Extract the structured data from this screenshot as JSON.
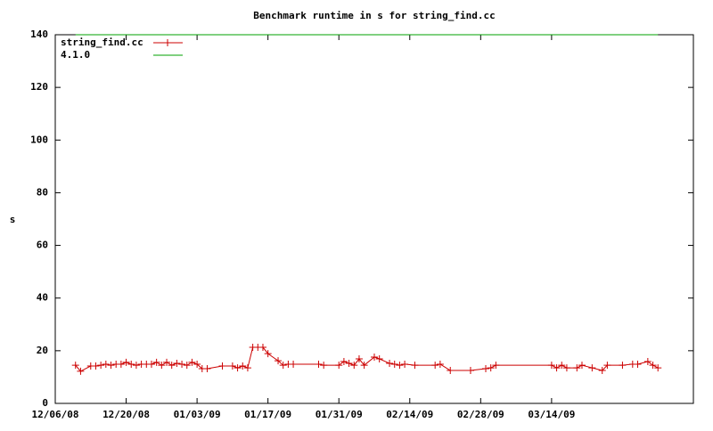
{
  "chart_data": {
    "type": "line",
    "title": "Benchmark runtime in s for string_find.cc",
    "y_label": "s",
    "xlim": [
      "2008-12-06",
      "2009-04-11"
    ],
    "xticks": [
      {
        "value": "2008-12-06",
        "label": "12/06/08"
      },
      {
        "value": "2008-12-20",
        "label": "12/20/08"
      },
      {
        "value": "2009-01-03",
        "label": "01/03/09"
      },
      {
        "value": "2009-01-17",
        "label": "01/17/09"
      },
      {
        "value": "2009-01-31",
        "label": "01/31/09"
      },
      {
        "value": "2009-02-14",
        "label": "02/14/09"
      },
      {
        "value": "2009-02-28",
        "label": "02/28/09"
      },
      {
        "value": "2009-03-14",
        "label": "03/14/09"
      }
    ],
    "ylim": [
      0,
      140
    ],
    "yticks": [
      0,
      20,
      40,
      60,
      80,
      100,
      120,
      140
    ],
    "legend": "top-left",
    "series": [
      {
        "name": "string_find.cc",
        "color": "#cc0000",
        "markers": true,
        "x": [
          "2008-12-10",
          "2008-12-11",
          "2008-12-13",
          "2008-12-14",
          "2008-12-15",
          "2008-12-16",
          "2008-12-17",
          "2008-12-18",
          "2008-12-19",
          "2008-12-20",
          "2008-12-21",
          "2008-12-22",
          "2008-12-23",
          "2008-12-24",
          "2008-12-25",
          "2008-12-26",
          "2008-12-27",
          "2008-12-28",
          "2008-12-29",
          "2008-12-30",
          "2008-12-31",
          "2009-01-01",
          "2009-01-02",
          "2009-01-03",
          "2009-01-04",
          "2009-01-05",
          "2009-01-08",
          "2009-01-10",
          "2009-01-11",
          "2009-01-12",
          "2009-01-13",
          "2009-01-14",
          "2009-01-15",
          "2009-01-16",
          "2009-01-17",
          "2009-01-19",
          "2009-01-20",
          "2009-01-21",
          "2009-01-22",
          "2009-01-27",
          "2009-01-28",
          "2009-01-31",
          "2009-02-01",
          "2009-02-02",
          "2009-02-03",
          "2009-02-04",
          "2009-02-05",
          "2009-02-07",
          "2009-02-08",
          "2009-02-10",
          "2009-02-11",
          "2009-02-12",
          "2009-02-13",
          "2009-02-15",
          "2009-02-19",
          "2009-02-20",
          "2009-02-22",
          "2009-02-26",
          "2009-03-01",
          "2009-03-02",
          "2009-03-03",
          "2009-03-14",
          "2009-03-15",
          "2009-03-16",
          "2009-03-17",
          "2009-03-19",
          "2009-03-20",
          "2009-03-22",
          "2009-03-24",
          "2009-03-25",
          "2009-03-28",
          "2009-03-30",
          "2009-03-31",
          "2009-04-02",
          "2009-04-03",
          "2009-04-04"
        ],
        "values": [
          14.5,
          12.2,
          14.2,
          14.2,
          14.5,
          14.9,
          14.5,
          14.9,
          14.9,
          15.6,
          14.9,
          14.5,
          14.9,
          14.9,
          14.9,
          15.6,
          14.5,
          15.6,
          14.5,
          15.2,
          14.9,
          14.5,
          15.6,
          14.9,
          13.2,
          13.2,
          14.2,
          14.2,
          13.5,
          14.2,
          13.5,
          21.3,
          21.3,
          21.3,
          18.9,
          16.2,
          14.5,
          14.9,
          14.9,
          14.9,
          14.5,
          14.5,
          15.9,
          15.2,
          14.5,
          16.9,
          14.5,
          17.6,
          16.9,
          15.2,
          14.9,
          14.5,
          14.9,
          14.5,
          14.5,
          14.9,
          12.5,
          12.5,
          13.2,
          13.5,
          14.5,
          14.5,
          13.5,
          14.5,
          13.5,
          13.5,
          14.5,
          13.5,
          12.5,
          14.5,
          14.5,
          14.9,
          14.9,
          15.9,
          14.5,
          13.5
        ]
      },
      {
        "name": "4.1.0",
        "color": "#00a000",
        "markers": false,
        "x": [
          "2008-12-10",
          "2009-04-04"
        ],
        "values": [
          140,
          140
        ]
      }
    ]
  }
}
